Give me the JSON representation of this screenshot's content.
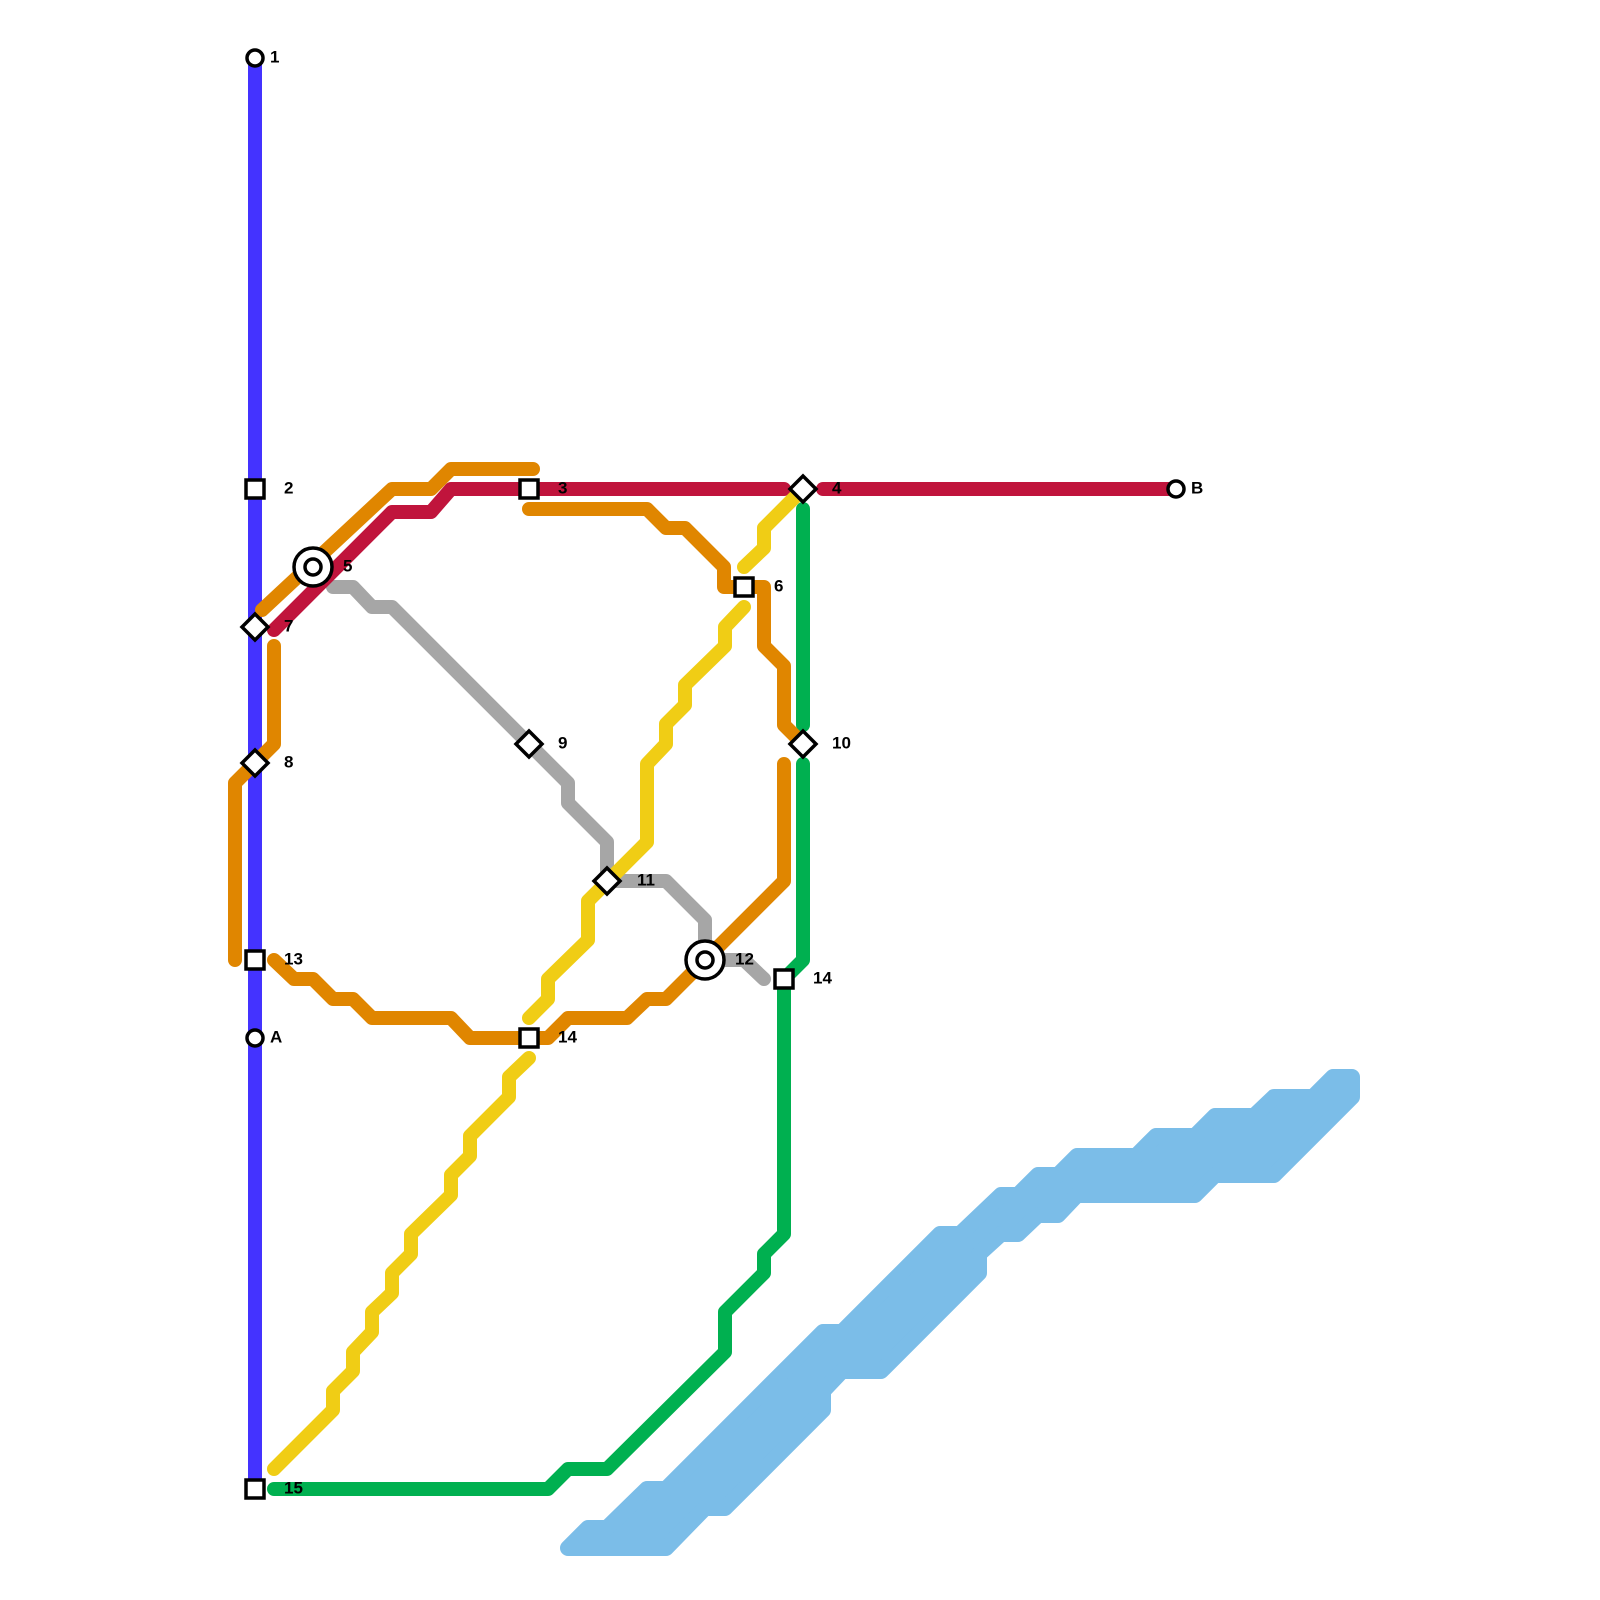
{
  "stations": [
    "1",
    "2",
    "3",
    "4",
    "5",
    "6",
    "7",
    "8",
    "9",
    "10",
    "11",
    "12",
    "13",
    "14",
    "14",
    "A",
    "B",
    "15"
  ]
}
